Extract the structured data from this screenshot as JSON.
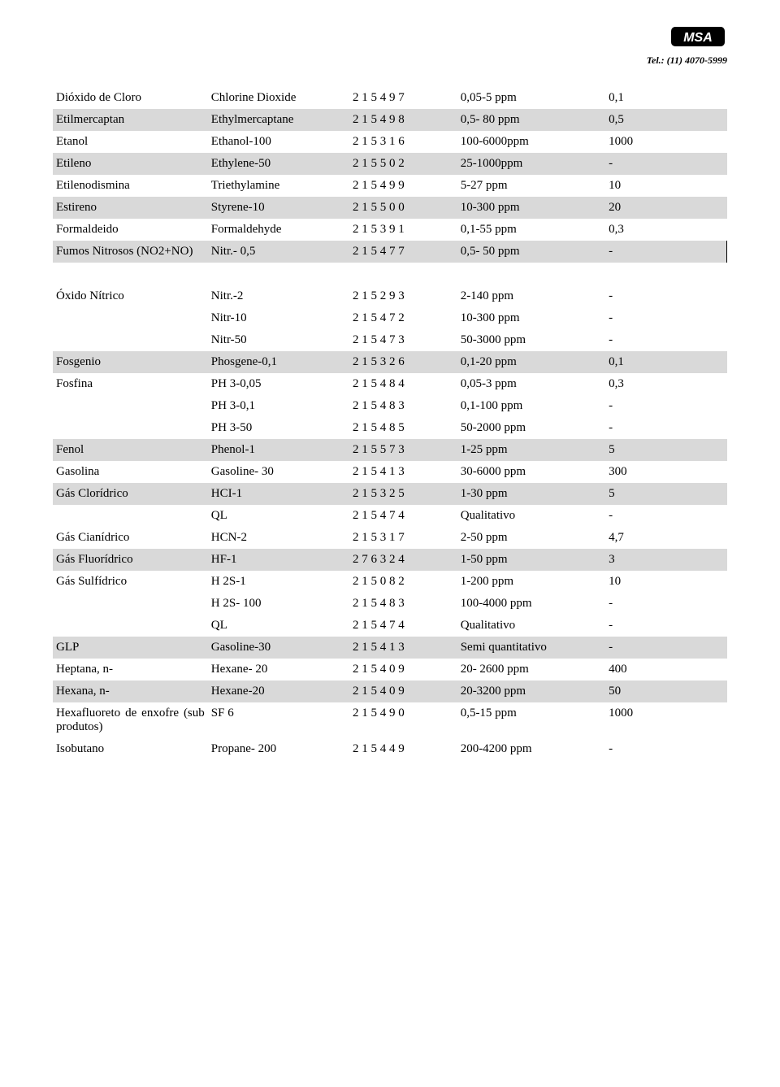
{
  "header": {
    "tel_label": "Tel.: (11) 4070-5999",
    "logo_text": "MSA"
  },
  "colors": {
    "shade": "#d9d9d9",
    "border": "#000000"
  },
  "rows": [
    {
      "shade": false,
      "c1": "Dióxido de Cloro",
      "c2": "Chlorine Dioxide",
      "c3": "2 1 5 4 9 7",
      "c4": "0,05-5 ppm",
      "c5": "0,1"
    },
    {
      "shade": true,
      "c1": "Etilmercaptan",
      "c2": "Ethylmercaptane",
      "c3": "2 1 5 4 9 8",
      "c4": "0,5- 80 ppm",
      "c5": "0,5"
    },
    {
      "shade": false,
      "c1": "Etanol",
      "c2": "Ethanol-100",
      "c3": "2 1 5 3 1 6",
      "c4": "100-6000ppm",
      "c5": "1000"
    },
    {
      "shade": true,
      "c1": "Etileno",
      "c2": "Ethylene-50",
      "c3": "2 1 5 5 0 2",
      "c4": "25-1000ppm",
      "c5": "-"
    },
    {
      "shade": false,
      "c1": "Etilenodismina",
      "c2": "Triethylamine",
      "c3": "2 1 5 4 9 9",
      "c4": "5-27 ppm",
      "c5": "10"
    },
    {
      "shade": true,
      "c1": "Estireno",
      "c2": "Styrene-10",
      "c3": "2 1 5 5 0 0",
      "c4": "10-300 ppm",
      "c5": "20"
    },
    {
      "shade": false,
      "c1": "Formaldeido",
      "c2": "Formaldehyde",
      "c3": "2 1 5 3 9 1",
      "c4": "0,1-55 ppm",
      "c5": "0,3"
    },
    {
      "shade": true,
      "c1": "Fumos Nitrosos (NO2+NO)",
      "c2": "Nitr.- 0,5",
      "c3": "2 1 5 4 7 7",
      "c4": "0,5- 50 ppm",
      "c5": "-",
      "rightBorder": true
    },
    {
      "spacer": true
    },
    {
      "shade": false,
      "c1": "Óxido Nítrico",
      "c2": "Nitr.-2",
      "c3": "2 1 5 2 9 3",
      "c4": "2-140 ppm",
      "c5": "-"
    },
    {
      "shade": false,
      "c1": "",
      "c2": "Nitr-10",
      "c3": "2 1 5 4 7 2",
      "c4": "10-300 ppm",
      "c5": "-"
    },
    {
      "shade": false,
      "c1": "",
      "c2": "Nitr-50",
      "c3": "2 1 5 4 7 3",
      "c4": "50-3000 ppm",
      "c5": "-"
    },
    {
      "shade": true,
      "c1": "Fosgenio",
      "c2": "Phosgene-0,1",
      "c3": "2 1 5 3 2 6",
      "c4": "0,1-20 ppm",
      "c5": "0,1"
    },
    {
      "shade": false,
      "c1": "Fosfina",
      "c2": "PH 3-0,05",
      "c3": "2 1 5  4 8 4",
      "c4": "0,05-3 ppm",
      "c5": "0,3"
    },
    {
      "shade": false,
      "c1": "",
      "c2": "PH 3-0,1",
      "c3": "2 1 5 4 8 3",
      "c4": "0,1-100 ppm",
      "c5": "-"
    },
    {
      "shade": false,
      "c1": "",
      "c2": "PH 3-50",
      "c3": "2 1 5 4 8 5",
      "c4": "50-2000 ppm",
      "c5": "-"
    },
    {
      "shade": true,
      "c1": "Fenol",
      "c2": "Phenol-1",
      "c3": "2 1 5 5 7 3",
      "c4": "1-25 ppm",
      "c5": "5"
    },
    {
      "shade": false,
      "c1": "Gasolina",
      "c2": "Gasoline- 30",
      "c3": "2 1 5 4 1 3",
      "c4": "30-6000 ppm",
      "c5": "300"
    },
    {
      "shade": true,
      "c1": "Gás Clorídrico",
      "c2": "HCI-1",
      "c3": "2 1 5 3 2 5",
      "c4": "1-30 ppm",
      "c5": "5"
    },
    {
      "shade": false,
      "c1": "",
      "c2": "QL",
      "c3": "2 1 5 4 7 4",
      "c4": "Qualitativo",
      "c5": "-"
    },
    {
      "shade": false,
      "c1": "Gás Cianídrico",
      "c2": "HCN-2",
      "c3": "2 1 5 3 1 7",
      "c4": "2-50 ppm",
      "c5": "4,7"
    },
    {
      "shade": true,
      "c1": "Gás Fluorídrico",
      "c2": "HF-1",
      "c3": "2 7 6 3 2 4",
      "c4": "1-50  ppm",
      "c5": "3"
    },
    {
      "shade": false,
      "c1": "Gás Sulfídrico",
      "c2": "H 2S-1",
      "c3": "2 1 5 0 8 2",
      "c4": "1-200 ppm",
      "c5": "10"
    },
    {
      "shade": false,
      "c1": "",
      "c2": "H 2S- 100",
      "c3": "2 1 5 4 8 3",
      "c4": "100-4000 ppm",
      "c5": "-"
    },
    {
      "shade": false,
      "c1": "",
      "c2": "QL",
      "c3": "2 1 5 4 7 4",
      "c4": "Qualitativo",
      "c5": "-"
    },
    {
      "shade": true,
      "c1": "GLP",
      "c2": "Gasoline-30",
      "c3": "2 1 5 4 1 3",
      "c4": "Semi quantitativo",
      "c5": "-"
    },
    {
      "shade": false,
      "c1": "Heptana, n-",
      "c2": "Hexane- 20",
      "c3": "2 1 5 4 0 9",
      "c4": "20- 2600 ppm",
      "c5": "400"
    },
    {
      "shade": true,
      "c1": "Hexana, n-",
      "c2": "Hexane-20",
      "c3": "2 1 5 4 0 9",
      "c4": "20-3200 ppm",
      "c5": "50"
    },
    {
      "shade": false,
      "c1": "Hexafluoreto de enxofre (sub produtos)",
      "c2": "SF 6",
      "c3": "2 1 5 4 9 0",
      "c4": "0,5-15 ppm",
      "c5": "1000",
      "justify": true
    },
    {
      "shade": false,
      "c1": "Isobutano",
      "c2": "Propane- 200",
      "c3": "2 1 5 4 4 9",
      "c4": "200-4200 ppm",
      "c5": "-"
    }
  ]
}
